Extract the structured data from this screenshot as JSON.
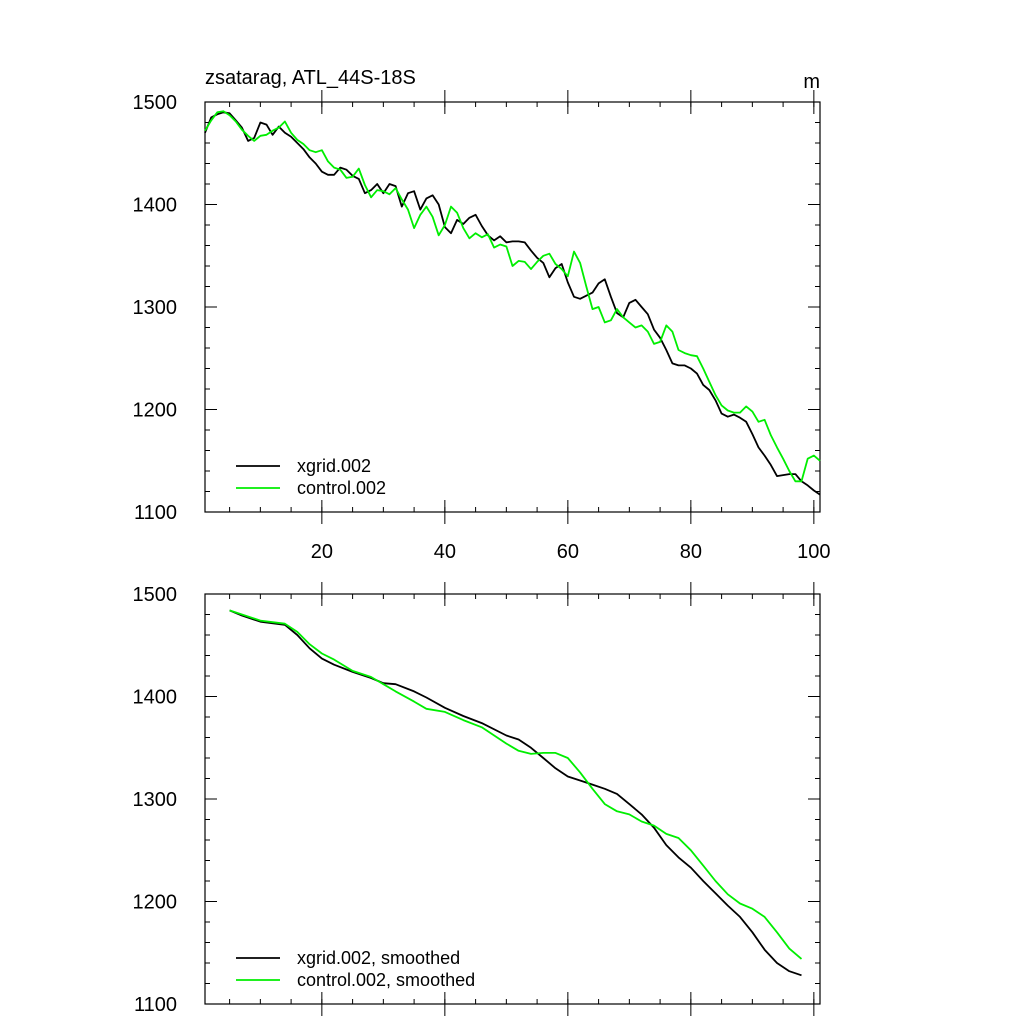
{
  "chart_data": [
    {
      "type": "line",
      "title": "zsatarag, ATL_44S-18S",
      "units": "m",
      "xlabel": "",
      "ylabel": "",
      "xlim": [
        1,
        101
      ],
      "ylim": [
        1100,
        1500
      ],
      "xticks": [
        20,
        40,
        60,
        80,
        100
      ],
      "xtick_labels": [
        "20",
        "40",
        "60",
        "80",
        "100"
      ],
      "yticks": [
        1100,
        1200,
        1300,
        1400,
        1500
      ],
      "ytick_labels": [
        "1100",
        "1200",
        "1300",
        "1400",
        "1500"
      ],
      "legend_position": "bottom-left",
      "series": [
        {
          "name": "xgrid.002",
          "color": "#000000",
          "x": [
            1,
            2,
            3,
            4,
            5,
            6,
            7,
            8,
            9,
            10,
            11,
            12,
            13,
            14,
            15,
            16,
            17,
            18,
            19,
            20,
            21,
            22,
            23,
            24,
            25,
            26,
            27,
            28,
            29,
            30,
            31,
            32,
            33,
            34,
            35,
            36,
            37,
            38,
            39,
            40,
            41,
            42,
            43,
            44,
            45,
            46,
            47,
            48,
            49,
            50,
            51,
            52,
            53,
            54,
            55,
            56,
            57,
            58,
            59,
            60,
            61,
            62,
            63,
            64,
            65,
            66,
            67,
            68,
            69,
            70,
            71,
            72,
            73,
            74,
            75,
            76,
            77,
            78,
            79,
            80,
            81,
            82,
            83,
            84,
            85,
            86,
            87,
            88,
            89,
            90,
            91,
            92,
            93,
            94,
            95,
            96,
            97,
            98,
            99,
            100,
            101
          ],
          "y": [
            1470,
            1485,
            1488,
            1490,
            1489,
            1482,
            1475,
            1462,
            1465,
            1480,
            1478,
            1468,
            1476,
            1470,
            1466,
            1460,
            1454,
            1446,
            1440,
            1432,
            1429,
            1429,
            1436,
            1434,
            1428,
            1425,
            1411,
            1414,
            1420,
            1411,
            1420,
            1418,
            1398,
            1411,
            1413,
            1395,
            1406,
            1409,
            1400,
            1378,
            1372,
            1385,
            1381,
            1387,
            1390,
            1379,
            1370,
            1365,
            1369,
            1363,
            1364,
            1364,
            1363,
            1355,
            1348,
            1343,
            1329,
            1338,
            1342,
            1324,
            1310,
            1308,
            1311,
            1314,
            1323,
            1327,
            1310,
            1294,
            1290,
            1304,
            1307,
            1300,
            1293,
            1278,
            1270,
            1258,
            1245,
            1243,
            1243,
            1240,
            1235,
            1224,
            1219,
            1209,
            1196,
            1193,
            1195,
            1192,
            1188,
            1176,
            1163,
            1155,
            1146,
            1135,
            1136,
            1137,
            1137,
            1130,
            1126,
            1121,
            1117
          ]
        },
        {
          "name": "control.002",
          "color": "#00ee00",
          "x": [
            1,
            2,
            3,
            4,
            5,
            6,
            7,
            8,
            9,
            10,
            11,
            12,
            13,
            14,
            15,
            16,
            17,
            18,
            19,
            20,
            21,
            22,
            23,
            24,
            25,
            26,
            27,
            28,
            29,
            30,
            31,
            32,
            33,
            34,
            35,
            36,
            37,
            38,
            39,
            40,
            41,
            42,
            43,
            44,
            45,
            46,
            47,
            48,
            49,
            50,
            51,
            52,
            53,
            54,
            55,
            56,
            57,
            58,
            59,
            60,
            61,
            62,
            63,
            64,
            65,
            66,
            67,
            68,
            69,
            70,
            71,
            72,
            73,
            74,
            75,
            76,
            77,
            78,
            79,
            80,
            81,
            82,
            83,
            84,
            85,
            86,
            87,
            88,
            89,
            90,
            91,
            92,
            93,
            94,
            95,
            96,
            97,
            98,
            99,
            100,
            101
          ],
          "y": [
            1472,
            1482,
            1490,
            1491,
            1487,
            1481,
            1473,
            1467,
            1462,
            1467,
            1468,
            1472,
            1475,
            1481,
            1470,
            1463,
            1459,
            1453,
            1451,
            1453,
            1442,
            1436,
            1434,
            1426,
            1427,
            1435,
            1419,
            1407,
            1414,
            1413,
            1410,
            1416,
            1405,
            1395,
            1377,
            1390,
            1398,
            1388,
            1370,
            1380,
            1398,
            1392,
            1377,
            1367,
            1372,
            1368,
            1371,
            1358,
            1361,
            1359,
            1340,
            1345,
            1344,
            1337,
            1344,
            1350,
            1352,
            1342,
            1337,
            1330,
            1354,
            1343,
            1320,
            1298,
            1300,
            1285,
            1287,
            1298,
            1290,
            1285,
            1280,
            1282,
            1276,
            1264,
            1266,
            1282,
            1276,
            1258,
            1255,
            1253,
            1252,
            1240,
            1227,
            1214,
            1204,
            1199,
            1197,
            1197,
            1203,
            1198,
            1188,
            1190,
            1175,
            1163,
            1152,
            1140,
            1130,
            1130,
            1152,
            1155,
            1150
          ]
        }
      ]
    },
    {
      "type": "line",
      "title": "",
      "xlabel": "",
      "ylabel": "",
      "xlim": [
        1,
        101
      ],
      "ylim": [
        1100,
        1500
      ],
      "xticks": [
        20,
        40,
        60,
        80,
        100
      ],
      "yticks": [
        1100,
        1200,
        1300,
        1400,
        1500
      ],
      "ytick_labels": [
        "1100",
        "1200",
        "1300",
        "1400",
        "1500"
      ],
      "legend_position": "bottom-left",
      "series": [
        {
          "name": "xgrid.002, smoothed",
          "color": "#000000",
          "x": [
            5,
            7,
            10,
            14,
            16,
            18,
            20,
            22,
            25,
            28,
            30,
            32,
            35,
            37,
            40,
            43,
            46,
            50,
            52,
            54,
            56,
            58,
            60,
            62,
            64,
            66,
            68,
            70,
            72,
            74,
            76,
            78,
            80,
            82,
            84,
            86,
            88,
            90,
            92,
            94,
            96,
            98
          ],
          "y": [
            1484,
            1479,
            1473,
            1470,
            1460,
            1447,
            1437,
            1431,
            1424,
            1418,
            1413,
            1412,
            1405,
            1399,
            1389,
            1381,
            1374,
            1362,
            1358,
            1350,
            1340,
            1330,
            1322,
            1318,
            1314,
            1310,
            1305,
            1295,
            1285,
            1272,
            1255,
            1243,
            1233,
            1220,
            1208,
            1196,
            1185,
            1170,
            1153,
            1140,
            1132,
            1128
          ]
        },
        {
          "name": "control.002, smoothed",
          "color": "#00ee00",
          "x": [
            5,
            7,
            10,
            14,
            16,
            18,
            20,
            22,
            25,
            28,
            30,
            32,
            35,
            37,
            40,
            43,
            46,
            50,
            52,
            54,
            56,
            58,
            60,
            62,
            64,
            66,
            68,
            70,
            72,
            74,
            76,
            78,
            80,
            82,
            84,
            86,
            88,
            90,
            92,
            94,
            96,
            98
          ],
          "y": [
            1484,
            1480,
            1474,
            1471,
            1463,
            1451,
            1442,
            1436,
            1425,
            1419,
            1412,
            1405,
            1395,
            1388,
            1385,
            1377,
            1370,
            1354,
            1347,
            1344,
            1345,
            1345,
            1340,
            1326,
            1310,
            1295,
            1288,
            1285,
            1278,
            1274,
            1266,
            1262,
            1250,
            1235,
            1220,
            1207,
            1198,
            1193,
            1185,
            1170,
            1154,
            1144
          ]
        }
      ]
    }
  ]
}
